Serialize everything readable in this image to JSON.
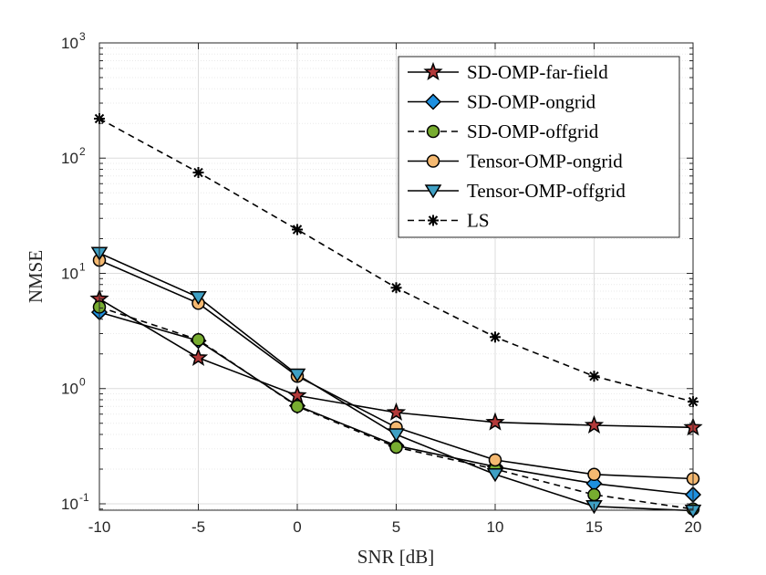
{
  "chart_data": {
    "type": "line",
    "title": "",
    "xlabel": "SNR [dB]",
    "ylabel": "NMSE",
    "yscale": "log",
    "x": [
      -10,
      -5,
      0,
      5,
      10,
      15,
      20
    ],
    "x_tick_labels": [
      "-10",
      "-5",
      "0",
      "5",
      "10",
      "15",
      "20"
    ],
    "xlim": [
      -10,
      20
    ],
    "ylim": [
      0.088,
      1000
    ],
    "y_ticks": [
      {
        "value": 0.1,
        "base": "10",
        "exp": "-1"
      },
      {
        "value": 1,
        "base": "10",
        "exp": "0"
      },
      {
        "value": 10,
        "base": "10",
        "exp": "1"
      },
      {
        "value": 100,
        "base": "10",
        "exp": "2"
      },
      {
        "value": 1000,
        "base": "10",
        "exp": "3"
      }
    ],
    "grid": true,
    "legend_position": "top-right",
    "series": [
      {
        "name": "SD-OMP-far-field",
        "values": [
          6.0,
          1.85,
          0.87,
          0.62,
          0.51,
          0.48,
          0.46
        ],
        "marker": "star",
        "color": "#b33a3a",
        "dash": false
      },
      {
        "name": "SD-OMP-ongrid",
        "values": [
          4.6,
          2.6,
          0.71,
          0.32,
          0.21,
          0.15,
          0.12
        ],
        "marker": "diamond",
        "color": "#1e90e0",
        "dash": false
      },
      {
        "name": "SD-OMP-offgrid",
        "values": [
          5.1,
          2.65,
          0.7,
          0.31,
          0.2,
          0.12,
          0.09
        ],
        "marker": "circle",
        "color": "#77ac30",
        "dash": true
      },
      {
        "name": "Tensor-OMP-ongrid",
        "values": [
          13.0,
          5.5,
          1.28,
          0.46,
          0.24,
          0.18,
          0.165
        ],
        "marker": "circle",
        "color": "#f5b971",
        "dash": false
      },
      {
        "name": "Tensor-OMP-offgrid",
        "values": [
          15.0,
          6.2,
          1.32,
          0.4,
          0.18,
          0.095,
          0.087
        ],
        "marker": "triangle-down",
        "color": "#3fa0c4",
        "dash": false
      },
      {
        "name": "LS",
        "values": [
          220,
          75,
          24,
          7.5,
          2.8,
          1.28,
          0.77
        ],
        "marker": "asterisk",
        "color": "#000000",
        "dash": true
      }
    ]
  }
}
